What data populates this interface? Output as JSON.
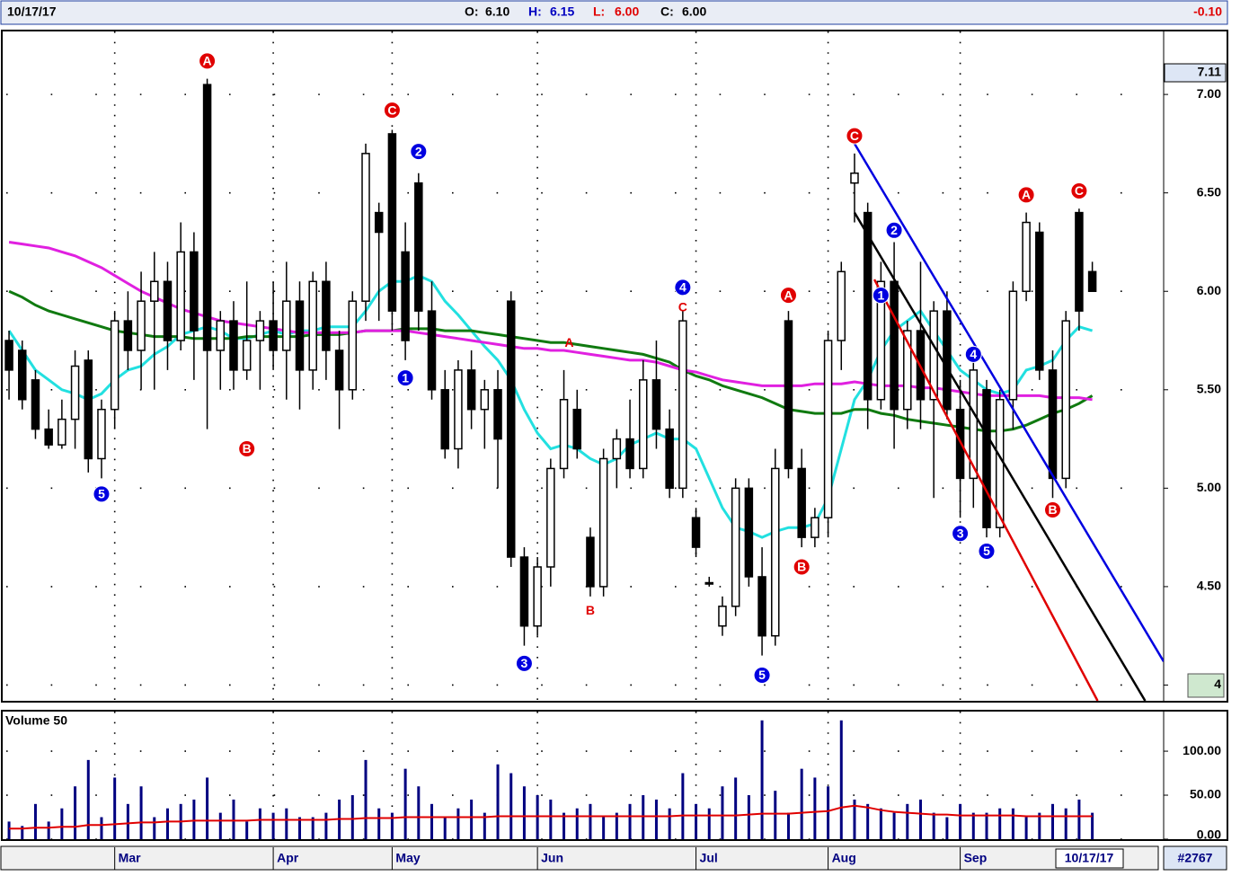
{
  "header": {
    "date": "10/17/17",
    "open": {
      "label": "O:",
      "value": "6.10"
    },
    "high": {
      "label": "H:",
      "value": "6.15"
    },
    "low": {
      "label": "L:",
      "value": "6.00"
    },
    "close": {
      "label": "C:",
      "value": "6.00"
    },
    "change": "-0.10"
  },
  "chart_data": [
    {
      "type": "candlestick",
      "grid": true,
      "xlim": [
        -0.48,
        87.4
      ],
      "ylim": [
        3.92,
        7.32
      ],
      "yticks": [
        {
          "value": 4,
          "label": "4"
        },
        {
          "value": 4.5,
          "label": "4.50"
        },
        {
          "value": 5,
          "label": "5.00"
        },
        {
          "value": 5.5,
          "label": "5.50"
        },
        {
          "value": 6,
          "label": "6.00"
        },
        {
          "value": 6.5,
          "label": "6.50"
        },
        {
          "value": 7,
          "label": "7.00"
        }
      ],
      "xticks": [
        {
          "value": 8,
          "label": "Mar"
        },
        {
          "value": 20,
          "label": "Apr"
        },
        {
          "value": 29,
          "label": "May"
        },
        {
          "value": 40,
          "label": "Jun"
        },
        {
          "value": 52,
          "label": "Jul"
        },
        {
          "value": 62,
          "label": "Aug"
        },
        {
          "value": 72,
          "label": "Sep"
        }
      ],
      "price_marker": {
        "value": 7.11,
        "label": "7.11"
      },
      "open": [
        5.75,
        5.7,
        5.55,
        5.3,
        5.22,
        5.35,
        5.65,
        5.15,
        5.4,
        5.85,
        5.7,
        5.95,
        6.05,
        5.75,
        6.2,
        7.05,
        5.7,
        5.85,
        5.6,
        5.75,
        5.85,
        5.7,
        5.95,
        5.6,
        6.05,
        5.7,
        5.5,
        5.95,
        6.4,
        6.8,
        6.2,
        6.55,
        5.9,
        5.5,
        5.2,
        5.6,
        5.4,
        5.5,
        5.95,
        4.65,
        4.3,
        4.6,
        5.1,
        5.4,
        4.75,
        4.5,
        5.15,
        5.25,
        5.1,
        5.55,
        5.3,
        5.0,
        4.85,
        4.52,
        4.3,
        4.4,
        5.0,
        4.55,
        4.25,
        5.85,
        5.1,
        4.75,
        4.85,
        5.75,
        6.55,
        6.4,
        5.45,
        6.05,
        5.4,
        5.8,
        5.45,
        5.9,
        5.4,
        5.05,
        5.5,
        4.8,
        5.45,
        6.0,
        6.3,
        5.6,
        5.05,
        6.4,
        6.1
      ],
      "high": [
        5.8,
        5.75,
        5.6,
        5.4,
        5.45,
        5.7,
        5.7,
        5.45,
        5.9,
        6.0,
        6.1,
        6.2,
        6.15,
        6.35,
        6.3,
        7.08,
        5.9,
        5.95,
        6.05,
        5.9,
        6.05,
        6.15,
        6.05,
        6.1,
        6.15,
        5.8,
        6.0,
        6.75,
        6.45,
        6.82,
        6.35,
        6.6,
        6.05,
        5.6,
        5.65,
        5.7,
        5.55,
        5.6,
        6.0,
        4.7,
        4.65,
        5.15,
        5.6,
        5.5,
        4.8,
        5.2,
        5.3,
        5.45,
        5.65,
        5.75,
        5.4,
        5.9,
        4.9,
        4.55,
        4.45,
        5.05,
        5.05,
        4.7,
        5.2,
        5.9,
        5.2,
        4.9,
        5.8,
        6.15,
        6.7,
        6.45,
        6.15,
        6.25,
        5.85,
        6.15,
        5.95,
        6.0,
        5.55,
        5.65,
        5.55,
        5.5,
        6.05,
        6.4,
        6.35,
        5.7,
        5.9,
        6.42,
        6.15
      ],
      "low": [
        5.45,
        5.4,
        5.25,
        5.2,
        5.2,
        5.2,
        5.08,
        5.05,
        5.3,
        5.6,
        5.5,
        5.5,
        5.6,
        5.7,
        5.55,
        5.3,
        5.5,
        5.5,
        5.55,
        5.5,
        5.6,
        5.45,
        5.4,
        5.5,
        5.55,
        5.3,
        5.45,
        5.85,
        5.85,
        5.8,
        5.65,
        5.8,
        5.45,
        5.15,
        5.1,
        5.3,
        5.2,
        5.0,
        4.6,
        4.2,
        4.25,
        4.5,
        5.05,
        5.15,
        4.45,
        4.45,
        5.0,
        5.05,
        5.05,
        5.2,
        4.95,
        4.95,
        4.65,
        4.5,
        4.25,
        4.35,
        4.5,
        4.15,
        4.2,
        5.05,
        4.7,
        4.7,
        4.75,
        5.6,
        6.35,
        5.3,
        5.4,
        5.2,
        5.3,
        5.3,
        4.95,
        5.35,
        4.85,
        4.9,
        4.75,
        4.75,
        5.3,
        5.95,
        5.55,
        4.95,
        5.0,
        5.8,
        6.0
      ],
      "close": [
        5.6,
        5.45,
        5.3,
        5.22,
        5.35,
        5.62,
        5.15,
        5.4,
        5.85,
        5.7,
        5.95,
        6.05,
        5.75,
        6.2,
        5.8,
        5.7,
        5.85,
        5.6,
        5.75,
        5.85,
        5.7,
        5.95,
        5.6,
        6.05,
        5.7,
        5.5,
        5.95,
        6.7,
        6.3,
        5.9,
        5.75,
        5.9,
        5.5,
        5.2,
        5.6,
        5.4,
        5.5,
        5.25,
        4.65,
        4.3,
        4.6,
        5.1,
        5.45,
        5.2,
        4.5,
        5.15,
        5.25,
        5.1,
        5.55,
        5.3,
        5.0,
        5.85,
        4.7,
        4.52,
        4.4,
        5.0,
        4.55,
        4.25,
        5.1,
        5.1,
        4.75,
        4.85,
        5.75,
        6.1,
        6.6,
        5.45,
        6.05,
        5.4,
        5.8,
        5.45,
        5.9,
        5.4,
        5.05,
        5.6,
        4.8,
        5.45,
        6.0,
        6.35,
        5.6,
        5.05,
        5.85,
        5.9,
        6.0
      ],
      "overlays": [
        {
          "color": "#22e0e0",
          "values": [
            5.8,
            5.7,
            5.6,
            5.55,
            5.5,
            5.48,
            5.45,
            5.48,
            5.55,
            5.6,
            5.62,
            5.68,
            5.72,
            5.78,
            5.8,
            5.82,
            5.8,
            5.76,
            5.76,
            5.78,
            5.8,
            5.78,
            5.8,
            5.8,
            5.82,
            5.82,
            5.82,
            5.9,
            6.0,
            6.05,
            6.05,
            6.08,
            6.05,
            5.95,
            5.88,
            5.8,
            5.72,
            5.65,
            5.55,
            5.4,
            5.28,
            5.2,
            5.22,
            5.2,
            5.15,
            5.12,
            5.15,
            5.22,
            5.25,
            5.28,
            5.25,
            5.25,
            5.2,
            5.05,
            4.9,
            4.8,
            4.78,
            4.75,
            4.78,
            4.8,
            4.8,
            4.82,
            4.95,
            5.2,
            5.45,
            5.55,
            5.7,
            5.8,
            5.85,
            5.9,
            5.8,
            5.7,
            5.6,
            5.55,
            5.5,
            5.48,
            5.5,
            5.6,
            5.62,
            5.65,
            5.75,
            5.82,
            5.8
          ]
        },
        {
          "color": "#107a10",
          "values": [
            6.0,
            5.97,
            5.93,
            5.9,
            5.88,
            5.86,
            5.84,
            5.82,
            5.8,
            5.79,
            5.78,
            5.77,
            5.77,
            5.77,
            5.76,
            5.76,
            5.76,
            5.76,
            5.77,
            5.77,
            5.77,
            5.77,
            5.77,
            5.78,
            5.78,
            5.78,
            5.79,
            5.8,
            5.8,
            5.8,
            5.81,
            5.81,
            5.81,
            5.8,
            5.8,
            5.8,
            5.79,
            5.78,
            5.77,
            5.76,
            5.75,
            5.74,
            5.74,
            5.73,
            5.72,
            5.71,
            5.7,
            5.69,
            5.68,
            5.66,
            5.64,
            5.6,
            5.57,
            5.55,
            5.52,
            5.5,
            5.48,
            5.46,
            5.43,
            5.4,
            5.39,
            5.38,
            5.38,
            5.38,
            5.4,
            5.4,
            5.38,
            5.37,
            5.35,
            5.34,
            5.33,
            5.32,
            5.31,
            5.3,
            5.29,
            5.29,
            5.3,
            5.32,
            5.35,
            5.38,
            5.4,
            5.43,
            5.47
          ]
        },
        {
          "color": "#e020e0",
          "values": [
            6.25,
            6.24,
            6.23,
            6.22,
            6.2,
            6.18,
            6.15,
            6.12,
            6.08,
            6.04,
            6.0,
            5.97,
            5.94,
            5.91,
            5.89,
            5.87,
            5.85,
            5.84,
            5.83,
            5.82,
            5.81,
            5.8,
            5.79,
            5.79,
            5.79,
            5.79,
            5.79,
            5.8,
            5.8,
            5.8,
            5.8,
            5.79,
            5.78,
            5.77,
            5.76,
            5.75,
            5.74,
            5.73,
            5.72,
            5.71,
            5.71,
            5.7,
            5.7,
            5.69,
            5.68,
            5.67,
            5.66,
            5.65,
            5.65,
            5.64,
            5.62,
            5.6,
            5.59,
            5.57,
            5.55,
            5.54,
            5.53,
            5.52,
            5.52,
            5.52,
            5.52,
            5.53,
            5.53,
            5.53,
            5.54,
            5.53,
            5.52,
            5.52,
            5.52,
            5.51,
            5.51,
            5.5,
            5.49,
            5.48,
            5.47,
            5.47,
            5.47,
            5.47,
            5.47,
            5.46,
            5.46,
            5.46,
            5.45
          ]
        }
      ],
      "trendlines": [
        {
          "color": "#0000e0",
          "x": [
            64,
            87.4
          ],
          "y": [
            6.75,
            4.12
          ]
        },
        {
          "color": "#000000",
          "x": [
            64,
            86
          ],
          "y": [
            6.4,
            3.92
          ]
        },
        {
          "color": "#e00000",
          "x": [
            65.5,
            82.4
          ],
          "y": [
            6.06,
            3.92
          ]
        }
      ],
      "annotations": [
        {
          "text": "5",
          "x": 7,
          "y": 4.97,
          "color": "#0000e0",
          "circle": true
        },
        {
          "text": "A",
          "x": 15,
          "y": 7.17,
          "color": "#e00000",
          "circle": true
        },
        {
          "text": "B",
          "x": 18,
          "y": 5.2,
          "color": "#e00000",
          "circle": true
        },
        {
          "text": "C",
          "x": 29,
          "y": 6.92,
          "color": "#e00000",
          "circle": true
        },
        {
          "text": "1",
          "x": 30,
          "y": 5.56,
          "color": "#0000e0",
          "circle": true
        },
        {
          "text": "2",
          "x": 31,
          "y": 6.71,
          "color": "#0000e0",
          "circle": true
        },
        {
          "text": "3",
          "x": 39,
          "y": 4.11,
          "color": "#0000e0",
          "circle": true
        },
        {
          "text": "A",
          "x": 42.4,
          "y": 5.74,
          "color": "#e00000",
          "circle": false
        },
        {
          "text": "B",
          "x": 44,
          "y": 4.38,
          "color": "#e00000",
          "circle": false
        },
        {
          "text": "4",
          "x": 51,
          "y": 6.02,
          "color": "#0000e0",
          "circle": true
        },
        {
          "text": "C",
          "x": 51,
          "y": 5.92,
          "color": "#e00000",
          "circle": false
        },
        {
          "text": "5",
          "x": 57,
          "y": 4.05,
          "color": "#0000e0",
          "circle": true
        },
        {
          "text": "A",
          "x": 59,
          "y": 5.98,
          "color": "#e00000",
          "circle": true
        },
        {
          "text": "B",
          "x": 60,
          "y": 4.6,
          "color": "#e00000",
          "circle": true
        },
        {
          "text": "C",
          "x": 64,
          "y": 6.79,
          "color": "#e00000",
          "circle": true
        },
        {
          "text": "1",
          "x": 66,
          "y": 5.98,
          "color": "#0000e0",
          "circle": true
        },
        {
          "text": "2",
          "x": 67,
          "y": 6.31,
          "color": "#0000e0",
          "circle": true
        },
        {
          "text": "3",
          "x": 72,
          "y": 4.77,
          "color": "#0000e0",
          "circle": true
        },
        {
          "text": "4",
          "x": 73,
          "y": 5.68,
          "color": "#0000e0",
          "circle": true
        },
        {
          "text": "5",
          "x": 74,
          "y": 4.68,
          "color": "#0000e0",
          "circle": true
        },
        {
          "text": "A",
          "x": 77,
          "y": 6.49,
          "color": "#e00000",
          "circle": true
        },
        {
          "text": "B",
          "x": 79,
          "y": 4.89,
          "color": "#e00000",
          "circle": true
        },
        {
          "text": "C",
          "x": 81,
          "y": 6.51,
          "color": "#e00000",
          "circle": true
        }
      ]
    },
    {
      "type": "bar",
      "title": "Volume 50",
      "color": "#000080",
      "grid": true,
      "xlim": [
        -0.48,
        87.4
      ],
      "ylim": [
        0,
        145
      ],
      "yticks": [
        {
          "value": 0,
          "label": "0.00"
        },
        {
          "value": 50,
          "label": "50.00"
        },
        {
          "value": 100,
          "label": "100.00"
        }
      ],
      "values": [
        20,
        15,
        40,
        20,
        35,
        60,
        90,
        25,
        70,
        40,
        60,
        25,
        35,
        40,
        45,
        70,
        30,
        45,
        20,
        35,
        30,
        35,
        25,
        25,
        30,
        45,
        50,
        90,
        35,
        30,
        80,
        60,
        40,
        25,
        35,
        45,
        30,
        85,
        75,
        60,
        50,
        45,
        30,
        35,
        40,
        25,
        30,
        40,
        50,
        45,
        35,
        75,
        40,
        35,
        60,
        70,
        50,
        135,
        55,
        30,
        80,
        70,
        60,
        135,
        45,
        40,
        35,
        30,
        40,
        45,
        30,
        25,
        40,
        30,
        30,
        35,
        35,
        25,
        30,
        40,
        35,
        45,
        30
      ],
      "overlays": [
        {
          "color": "#e00000",
          "values": [
            12,
            12,
            13,
            13,
            14,
            14,
            16,
            16,
            17,
            18,
            19,
            19,
            20,
            20,
            21,
            21,
            21,
            21,
            21,
            22,
            22,
            22,
            22,
            22,
            22,
            23,
            23,
            24,
            24,
            24,
            25,
            25,
            25,
            25,
            25,
            25,
            25,
            26,
            26,
            26,
            26,
            26,
            26,
            26,
            26,
            26,
            26,
            26,
            26,
            26,
            26,
            27,
            27,
            27,
            27,
            27,
            28,
            29,
            29,
            29,
            30,
            31,
            32,
            36,
            38,
            36,
            33,
            31,
            30,
            29,
            28,
            28,
            27,
            27,
            27,
            27,
            27,
            26,
            26,
            26,
            26,
            26,
            26
          ]
        }
      ]
    }
  ],
  "footer": {
    "date": "10/17/17",
    "id": "#2767"
  }
}
